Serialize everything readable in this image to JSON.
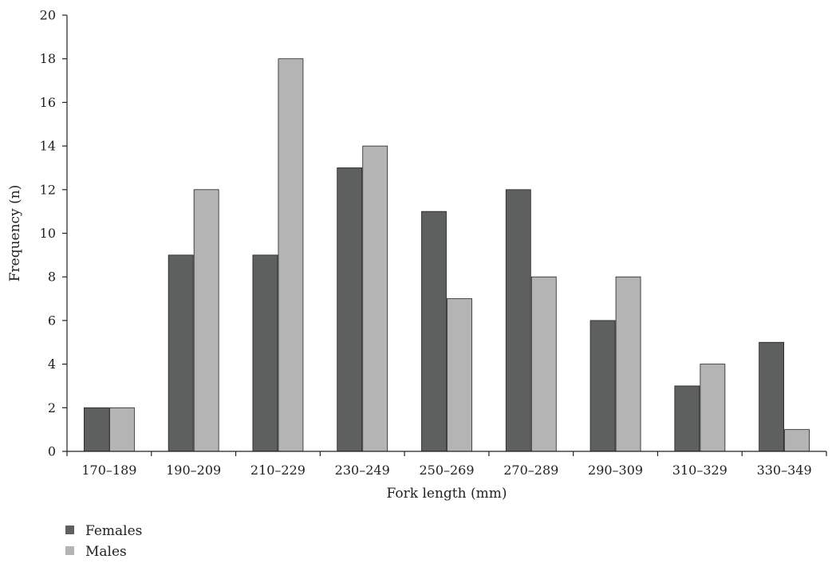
{
  "chart_data": {
    "type": "bar",
    "title": "",
    "xlabel": "Fork length (mm)",
    "ylabel": "Frequency (n)",
    "ylim": [
      0,
      20
    ],
    "yticks": [
      0,
      2,
      4,
      6,
      8,
      10,
      12,
      14,
      16,
      18,
      20
    ],
    "grid": false,
    "legend_position": "bottom-left",
    "categories": [
      "170–189",
      "190–209",
      "210–229",
      "230–249",
      "250–269",
      "270–289",
      "290–309",
      "310–329",
      "330–349"
    ],
    "series": [
      {
        "name": "Females",
        "color": "#5e605f",
        "values": [
          2,
          9,
          9,
          13,
          11,
          12,
          6,
          3,
          5
        ]
      },
      {
        "name": "Males",
        "color": "#b3b4b3",
        "values": [
          2,
          12,
          18,
          14,
          7,
          8,
          8,
          4,
          1
        ]
      }
    ]
  }
}
